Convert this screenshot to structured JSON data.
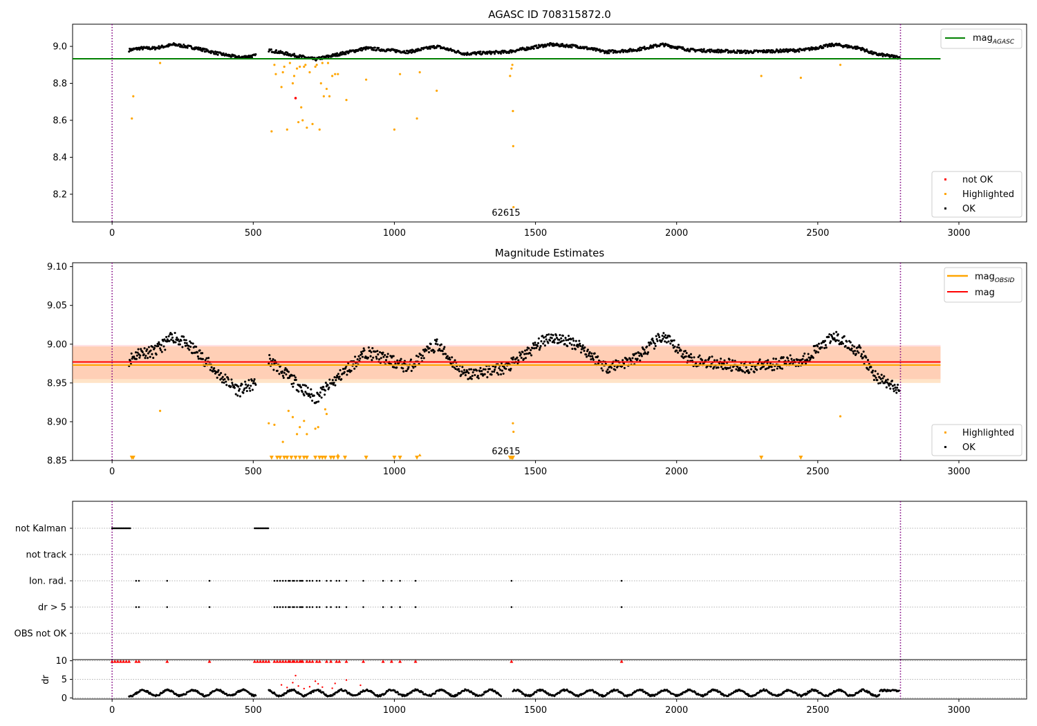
{
  "chart_data": [
    {
      "panel": "top",
      "type": "scatter",
      "title": "AGASC ID 708315872.0",
      "xlim": [
        -140,
        3240
      ],
      "ylim": [
        8.05,
        9.12
      ],
      "xticks": [
        0,
        500,
        1000,
        1500,
        2000,
        2500,
        3000
      ],
      "yticks": [
        8.2,
        8.4,
        8.6,
        8.8,
        9.0
      ],
      "grid": false,
      "legends": [
        {
          "location": "top-right",
          "entries": [
            {
              "type": "line",
              "color": "#008000",
              "label": "mag",
              "subscript": "AGASC"
            }
          ]
        },
        {
          "location": "lower-right",
          "entries": [
            {
              "type": "marker",
              "color": "#ff0000",
              "label": "not OK"
            },
            {
              "type": "marker",
              "color": "#ffa500",
              "label": "Highlighted"
            },
            {
              "type": "marker",
              "color": "#000000",
              "label": "OK"
            }
          ]
        }
      ],
      "hlines": [
        {
          "y": 8.933,
          "x_range": [
            -140,
            2935
          ],
          "color": "#008000",
          "label": "mag_AGASC"
        }
      ],
      "vlines": [
        {
          "x": 0,
          "color": "#800080",
          "style": "dotted"
        },
        {
          "x": 2793,
          "color": "#800080",
          "style": "dotted"
        }
      ],
      "annotations": [
        {
          "x": 1395,
          "y": 8.07,
          "text": "62615"
        }
      ],
      "ok_trend": {
        "color": "#000000",
        "segments": [
          [
            60,
            510
          ],
          [
            555,
            1140
          ],
          [
            1140,
            2790
          ]
        ],
        "knots_x": [
          60,
          100,
          150,
          220,
          300,
          380,
          450,
          510,
          555,
          650,
          720,
          780,
          900,
          1050,
          1150,
          1250,
          1400,
          1550,
          1650,
          1750,
          1850,
          1950,
          2050,
          2250,
          2450,
          2560,
          2650,
          2700,
          2790
        ],
        "knots_y": [
          8.98,
          8.99,
          8.99,
          9.01,
          8.99,
          8.96,
          8.94,
          8.95,
          8.98,
          8.95,
          8.93,
          8.95,
          8.99,
          8.97,
          9.0,
          8.96,
          8.97,
          9.01,
          9.0,
          8.97,
          8.98,
          9.01,
          8.98,
          8.97,
          8.98,
          9.01,
          8.99,
          8.96,
          8.94
        ],
        "noise_amplitude": 0.008
      },
      "highlighted_points": [
        [
          70,
          8.61
        ],
        [
          75,
          8.73
        ],
        [
          170,
          8.91
        ],
        [
          565,
          8.54
        ],
        [
          575,
          8.9
        ],
        [
          580,
          8.85
        ],
        [
          600,
          8.78
        ],
        [
          605,
          8.86
        ],
        [
          610,
          8.89
        ],
        [
          620,
          8.55
        ],
        [
          630,
          8.91
        ],
        [
          640,
          8.8
        ],
        [
          645,
          8.84
        ],
        [
          655,
          8.88
        ],
        [
          660,
          8.59
        ],
        [
          665,
          8.89
        ],
        [
          670,
          8.67
        ],
        [
          675,
          8.6
        ],
        [
          680,
          8.89
        ],
        [
          685,
          8.9
        ],
        [
          690,
          8.56
        ],
        [
          700,
          8.86
        ],
        [
          710,
          8.58
        ],
        [
          720,
          8.89
        ],
        [
          725,
          8.9
        ],
        [
          735,
          8.55
        ],
        [
          740,
          8.8
        ],
        [
          745,
          8.91
        ],
        [
          750,
          8.73
        ],
        [
          760,
          8.77
        ],
        [
          765,
          8.91
        ],
        [
          770,
          8.73
        ],
        [
          780,
          8.84
        ],
        [
          790,
          8.85
        ],
        [
          800,
          8.85
        ],
        [
          830,
          8.71
        ],
        [
          900,
          8.82
        ],
        [
          1000,
          8.55
        ],
        [
          1020,
          8.85
        ],
        [
          1080,
          8.61
        ],
        [
          1090,
          8.86
        ],
        [
          1150,
          8.76
        ],
        [
          1410,
          8.84
        ],
        [
          1415,
          8.88
        ],
        [
          1418,
          8.9
        ],
        [
          1420,
          8.65
        ],
        [
          1421,
          8.46
        ],
        [
          1422,
          8.13
        ],
        [
          2300,
          8.84
        ],
        [
          2440,
          8.83
        ],
        [
          2580,
          8.9
        ]
      ],
      "not_ok_points": [
        [
          650,
          8.72
        ]
      ]
    },
    {
      "panel": "middle",
      "type": "scatter",
      "title": "Magnitude Estimates",
      "xlim": [
        -140,
        3240
      ],
      "ylim": [
        8.85,
        9.105
      ],
      "xticks": [
        0,
        500,
        1000,
        1500,
        2000,
        2500,
        3000
      ],
      "yticks": [
        8.85,
        8.9,
        8.95,
        9.0,
        9.05,
        9.1
      ],
      "grid": false,
      "legends": [
        {
          "location": "top-right",
          "entries": [
            {
              "type": "line",
              "color": "#ffa500",
              "label": "mag",
              "subscript": "OBSID"
            },
            {
              "type": "line",
              "color": "#ff0000",
              "label": "mag"
            }
          ]
        },
        {
          "location": "lower-right",
          "entries": [
            {
              "type": "marker",
              "color": "#ffa500",
              "label": "Highlighted"
            },
            {
              "type": "marker",
              "color": "#000000",
              "label": "OK"
            }
          ]
        }
      ],
      "bands": [
        {
          "y_range": [
            8.955,
            8.999
          ],
          "x_range": [
            -140,
            2935
          ],
          "color": "#ff9ca8",
          "opacity": 0.3
        },
        {
          "y_range": [
            8.95,
            8.997
          ],
          "x_range": [
            -140,
            2935
          ],
          "color": "#ffa54a",
          "opacity": 0.3
        }
      ],
      "hlines": [
        {
          "y": 8.973,
          "x_range": [
            -140,
            2935
          ],
          "color": "#ffa500",
          "label": "mag_OBSID"
        },
        {
          "y": 8.977,
          "x_range": [
            -140,
            2935
          ],
          "color": "#ff0000",
          "label": "mag"
        }
      ],
      "vlines": [
        {
          "x": 0,
          "color": "#800080",
          "style": "dotted"
        },
        {
          "x": 2793,
          "color": "#800080",
          "style": "dotted"
        }
      ],
      "annotations": [
        {
          "x": 1395,
          "y": 8.858,
          "text": "62615"
        }
      ],
      "ok_trend": {
        "color": "#000000",
        "segments": [
          [
            60,
            510
          ],
          [
            555,
            1140
          ],
          [
            1140,
            2790
          ]
        ],
        "knots_x": [
          60,
          100,
          150,
          220,
          300,
          380,
          450,
          510,
          555,
          650,
          720,
          780,
          900,
          1050,
          1150,
          1250,
          1400,
          1550,
          1650,
          1750,
          1850,
          1950,
          2050,
          2250,
          2450,
          2560,
          2650,
          2700,
          2790
        ],
        "knots_y": [
          8.98,
          8.99,
          8.99,
          9.01,
          8.99,
          8.96,
          8.94,
          8.95,
          8.98,
          8.95,
          8.93,
          8.95,
          8.99,
          8.97,
          9.0,
          8.96,
          8.97,
          9.01,
          9.0,
          8.97,
          8.98,
          9.01,
          8.98,
          8.97,
          8.98,
          9.01,
          8.99,
          8.96,
          8.94
        ],
        "noise_amplitude": 0.008
      },
      "highlighted_points": [
        [
          170,
          8.914
        ],
        [
          555,
          8.898
        ],
        [
          575,
          8.896
        ],
        [
          605,
          8.874
        ],
        [
          625,
          8.914
        ],
        [
          640,
          8.906
        ],
        [
          655,
          8.884
        ],
        [
          665,
          8.893
        ],
        [
          680,
          8.901
        ],
        [
          690,
          8.884
        ],
        [
          720,
          8.891
        ],
        [
          730,
          8.893
        ],
        [
          755,
          8.916
        ],
        [
          760,
          8.91
        ],
        [
          1420,
          8.898
        ],
        [
          1422,
          8.887
        ],
        [
          2580,
          8.907
        ]
      ],
      "clipped_low_markers_x": [
        70,
        75,
        565,
        585,
        595,
        610,
        620,
        635,
        650,
        665,
        680,
        690,
        720,
        735,
        745,
        755,
        775,
        785,
        800,
        825,
        900,
        1000,
        1020,
        1080,
        1410,
        1415,
        1418,
        1420,
        2300,
        2440
      ],
      "clipped_high_markers_x": [
        800,
        1090
      ]
    },
    {
      "panel": "flags",
      "type": "scatter",
      "xlim": [
        -140,
        3240
      ],
      "categories": [
        "OBS not OK",
        "dr > 5",
        "Ion. rad.",
        "not track",
        "not Kalman"
      ],
      "grid": true,
      "vlines": [
        {
          "x": 0,
          "color": "#800080",
          "style": "dotted"
        },
        {
          "x": 2793,
          "color": "#800080",
          "style": "dotted"
        }
      ],
      "series": [
        {
          "category": "not Kalman",
          "ranges": [
            [
              0,
              65
            ],
            [
              505,
              555
            ]
          ]
        },
        {
          "category": "not track",
          "x": []
        },
        {
          "category": "Ion. rad.",
          "x": [
            85,
            95,
            195,
            345,
            575,
            585,
            595,
            605,
            615,
            625,
            630,
            640,
            645,
            655,
            665,
            670,
            675,
            690,
            700,
            710,
            725,
            735,
            760,
            775,
            795,
            805,
            830,
            890,
            960,
            990,
            1020,
            1075,
            1415,
            1805
          ]
        },
        {
          "category": "dr > 5",
          "x": [
            85,
            95,
            195,
            345,
            575,
            585,
            595,
            605,
            615,
            625,
            630,
            640,
            645,
            655,
            665,
            670,
            675,
            690,
            700,
            710,
            725,
            735,
            760,
            775,
            795,
            805,
            830,
            890,
            960,
            990,
            1020,
            1075,
            1415,
            1805
          ]
        },
        {
          "category": "OBS not OK",
          "x": []
        }
      ]
    },
    {
      "panel": "dr",
      "type": "scatter",
      "ylabel": "dr",
      "xlim": [
        -140,
        3240
      ],
      "ylim": [
        -0.3,
        10.3
      ],
      "yticks": [
        0,
        5,
        10
      ],
      "xticks": [
        0,
        500,
        1000,
        1500,
        2000,
        2500,
        3000
      ],
      "grid": true,
      "vlines": [
        {
          "x": 0,
          "color": "#800080",
          "style": "dotted"
        },
        {
          "x": 2793,
          "color": "#800080",
          "style": "dotted"
        }
      ],
      "ok_segments": [
        [
          60,
          510
        ],
        [
          555,
          1380
        ],
        [
          1420,
          2790
        ]
      ],
      "ok_typical_range": [
        0.5,
        2.2
      ],
      "clipped_red_markers_x": [
        0,
        10,
        20,
        30,
        40,
        50,
        60,
        85,
        95,
        195,
        345,
        505,
        515,
        525,
        535,
        545,
        555,
        575,
        585,
        595,
        605,
        615,
        625,
        630,
        640,
        645,
        655,
        665,
        670,
        675,
        690,
        700,
        710,
        725,
        735,
        760,
        775,
        795,
        805,
        830,
        890,
        960,
        990,
        1020,
        1075,
        1415,
        1805
      ],
      "red_points": [
        [
          600,
          3.5
        ],
        [
          620,
          2.8
        ],
        [
          640,
          4.1
        ],
        [
          650,
          6.0
        ],
        [
          660,
          3.2
        ],
        [
          680,
          2.5
        ],
        [
          700,
          3.0
        ],
        [
          720,
          4.5
        ],
        [
          730,
          3.8
        ],
        [
          745,
          2.9
        ],
        [
          780,
          2.6
        ],
        [
          790,
          3.9
        ],
        [
          830,
          4.8
        ],
        [
          880,
          3.4
        ]
      ]
    }
  ]
}
